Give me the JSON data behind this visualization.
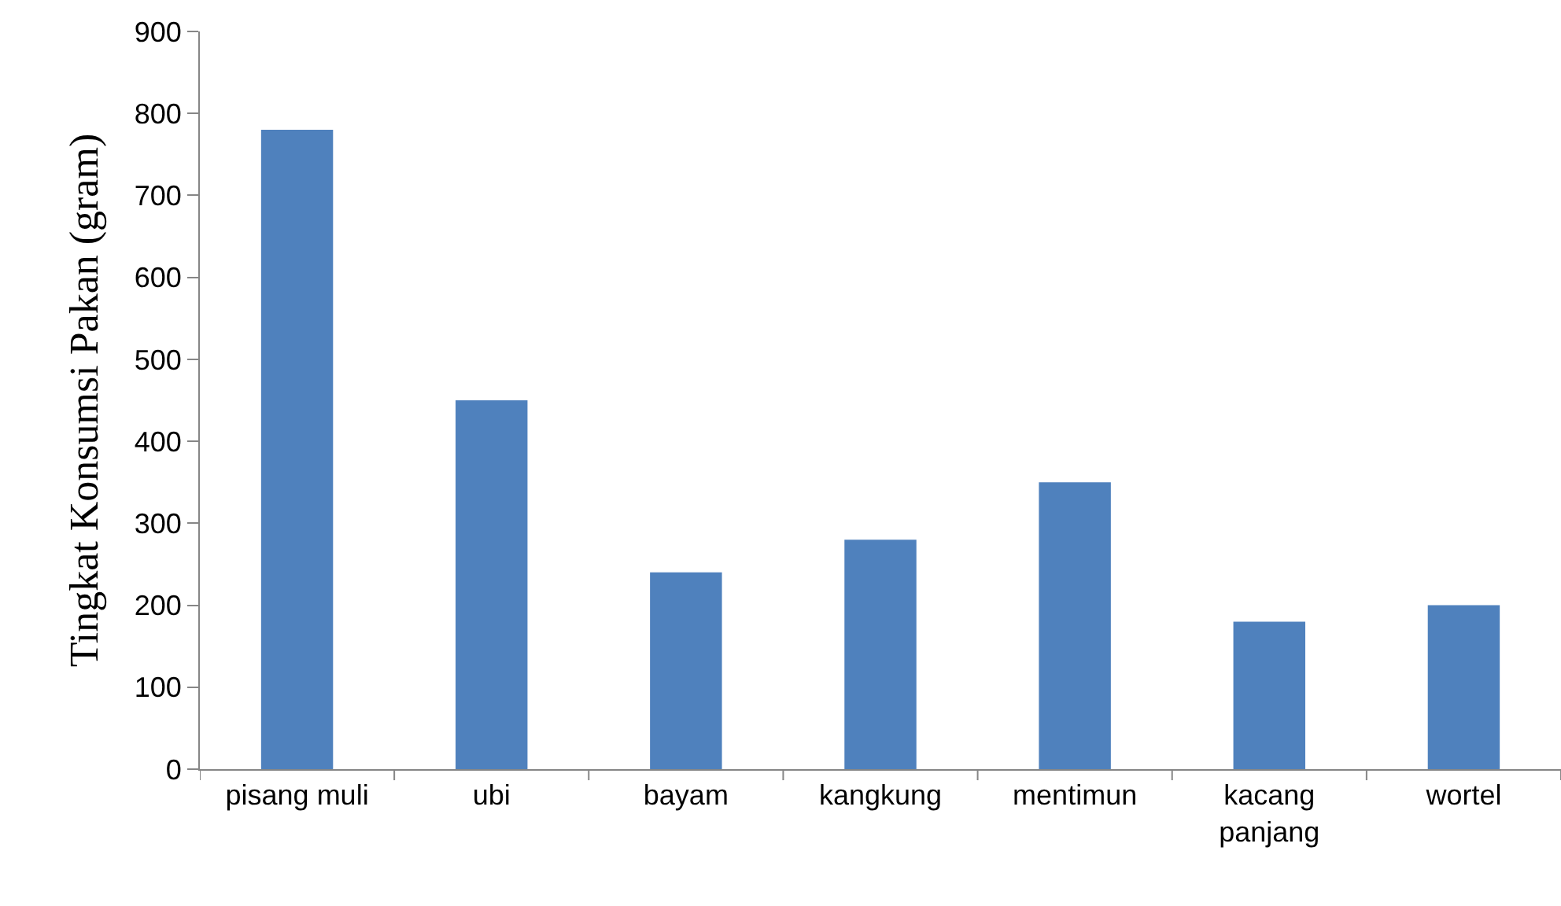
{
  "chart_data": {
    "type": "bar",
    "ylabel": "Tingkat Konsumsi Pakan (gram)",
    "categories": [
      "pisang muli",
      "ubi",
      "bayam",
      "kangkung",
      "mentimun",
      "kacang panjang",
      "wortel"
    ],
    "values": [
      780,
      450,
      240,
      280,
      350,
      180,
      200
    ],
    "color": "#4f81bd",
    "ylim": [
      0,
      900
    ],
    "yticks": [
      0,
      100,
      200,
      300,
      400,
      500,
      600,
      700,
      800,
      900
    ],
    "grid": false,
    "legend": false
  }
}
